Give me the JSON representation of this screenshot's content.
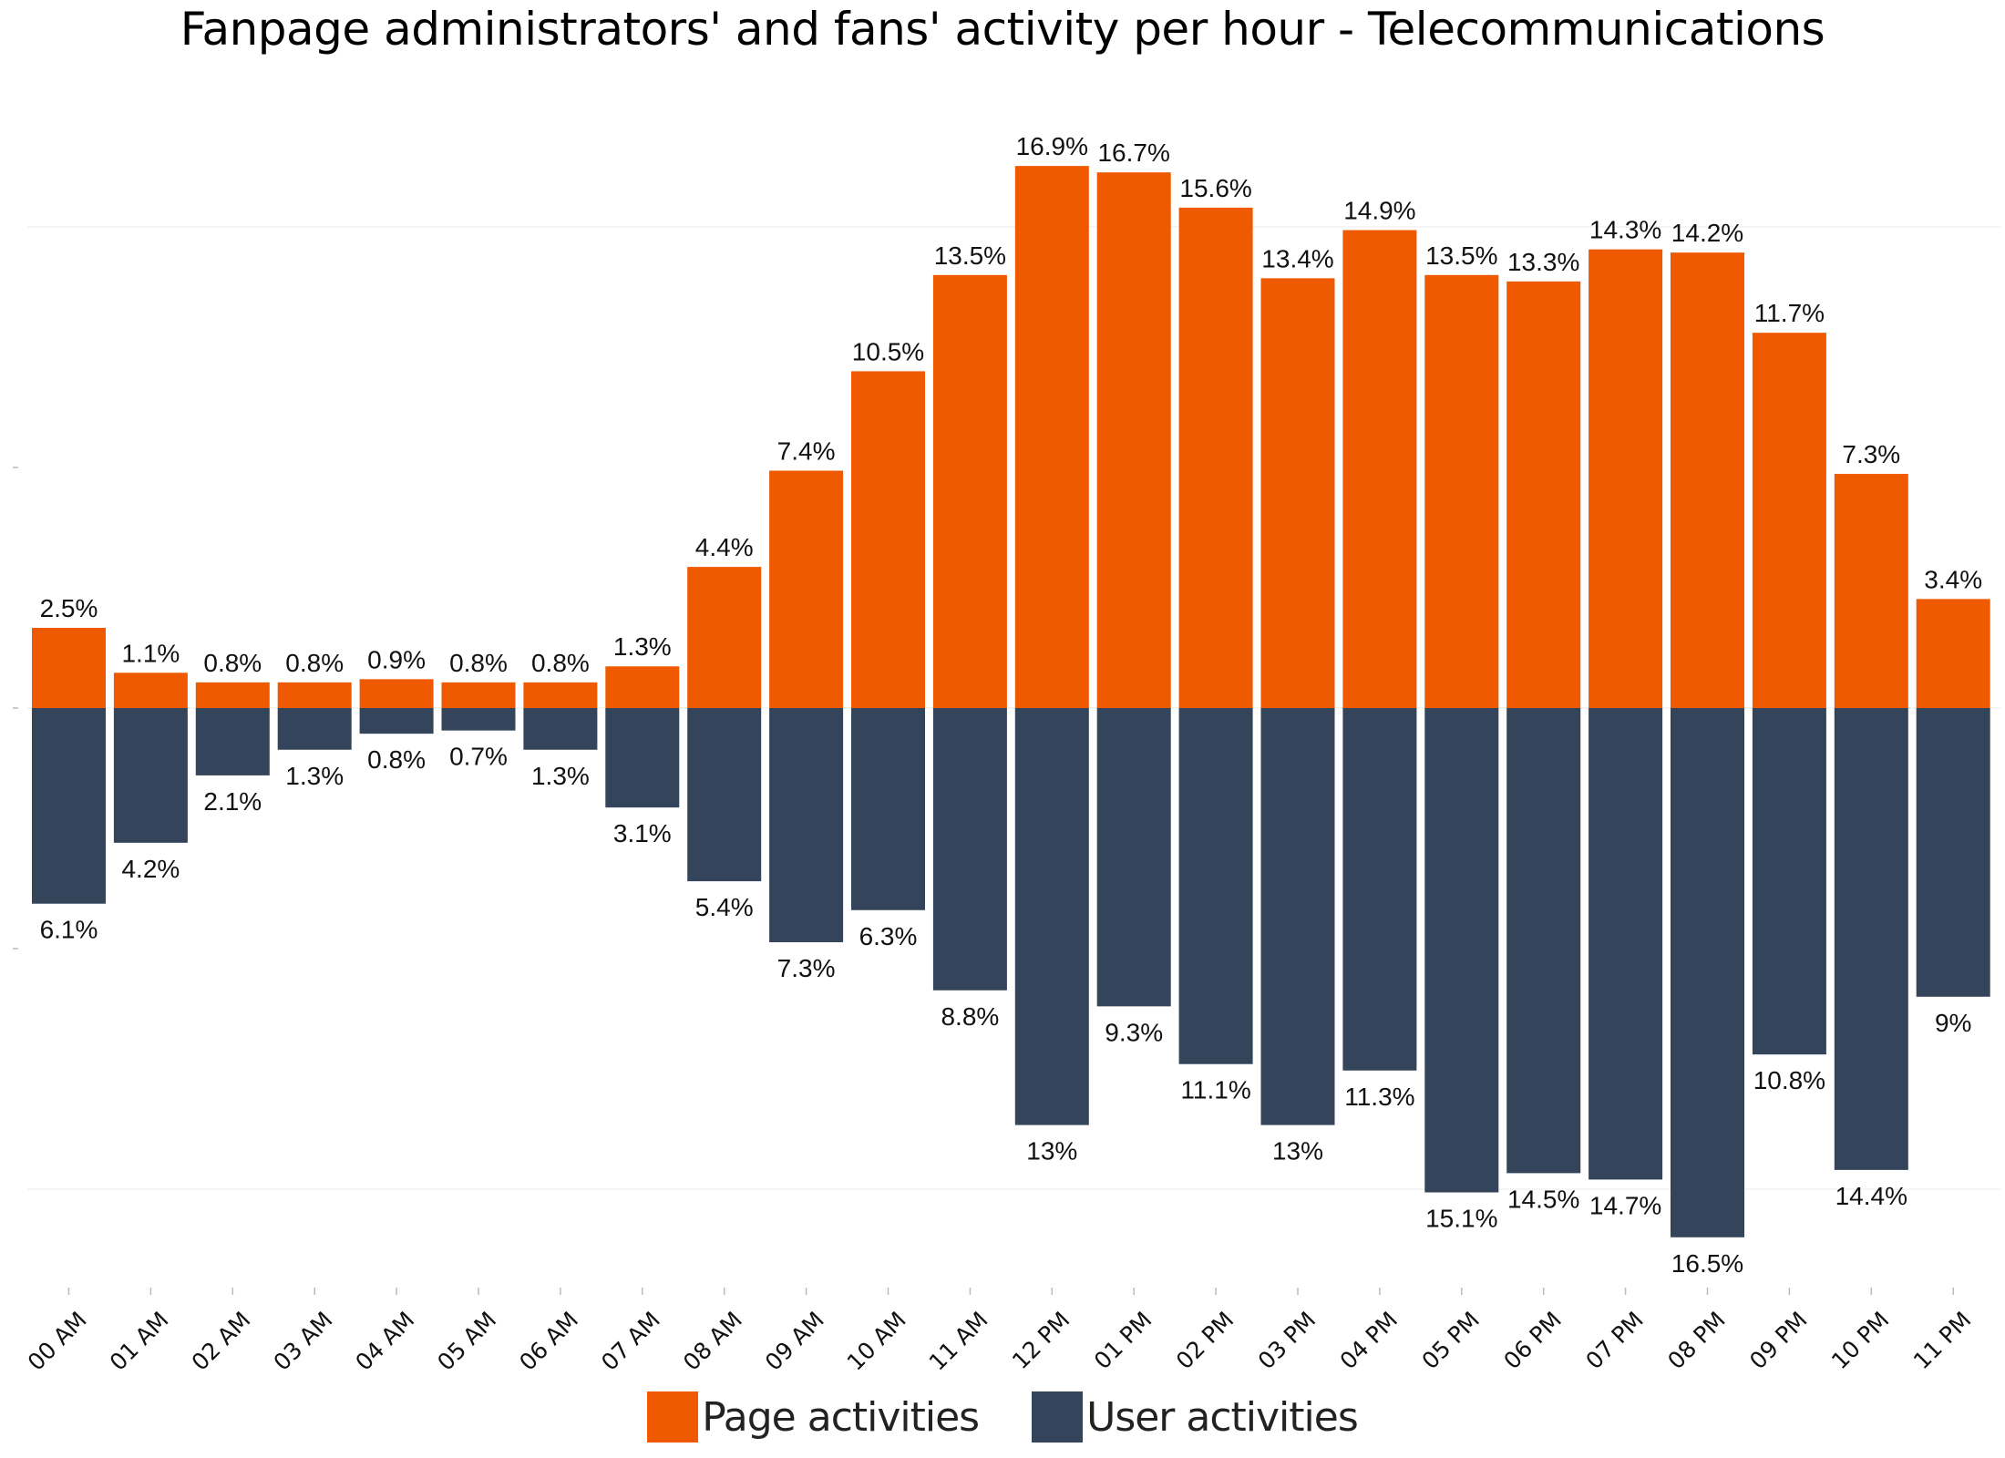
{
  "chart_data": {
    "type": "bar",
    "layout": "diverging",
    "title": "Fanpage administrators' and fans' activity per hour - Telecommunications",
    "xlabel": "",
    "ylabel": "",
    "ylim": [
      -17.5,
      17.5
    ],
    "grid": true,
    "legend_position": "bottom",
    "categories": [
      "00 AM",
      "01 AM",
      "02 AM",
      "03 AM",
      "04 AM",
      "05 AM",
      "06 AM",
      "07 AM",
      "08 AM",
      "09 AM",
      "10 AM",
      "11 AM",
      "12 PM",
      "01 PM",
      "02 PM",
      "03 PM",
      "04 PM",
      "05 PM",
      "06 PM",
      "07 PM",
      "08 PM",
      "09 PM",
      "10 PM",
      "11 PM"
    ],
    "series": [
      {
        "name": "Page activities",
        "color": "#ef5a00",
        "direction": "up",
        "values": [
          2.5,
          1.1,
          0.8,
          0.8,
          0.9,
          0.8,
          0.8,
          1.3,
          4.4,
          7.4,
          10.5,
          13.5,
          16.9,
          16.7,
          15.6,
          13.4,
          14.9,
          13.5,
          13.3,
          14.3,
          14.2,
          11.7,
          7.3,
          3.4
        ],
        "labels": [
          "2.5%",
          "1.1%",
          "0.8%",
          "0.8%",
          "0.9%",
          "0.8%",
          "0.8%",
          "1.3%",
          "4.4%",
          "7.4%",
          "10.5%",
          "13.5%",
          "16.9%",
          "16.7%",
          "15.6%",
          "13.4%",
          "14.9%",
          "13.5%",
          "13.3%",
          "14.3%",
          "14.2%",
          "11.7%",
          "7.3%",
          "3.4%"
        ]
      },
      {
        "name": "User activities",
        "color": "#34445b",
        "direction": "down",
        "values": [
          6.1,
          4.2,
          2.1,
          1.3,
          0.8,
          0.7,
          1.3,
          3.1,
          5.4,
          7.3,
          6.3,
          8.8,
          13,
          9.3,
          11.1,
          13,
          11.3,
          15.1,
          14.5,
          14.7,
          16.5,
          10.8,
          14.4,
          9
        ],
        "labels": [
          "6.1%",
          "4.2%",
          "2.1%",
          "1.3%",
          "0.8%",
          "0.7%",
          "1.3%",
          "3.1%",
          "5.4%",
          "7.3%",
          "6.3%",
          "8.8%",
          "13%",
          "9.3%",
          "11.1%",
          "13%",
          "11.3%",
          "15.1%",
          "14.5%",
          "14.7%",
          "16.5%",
          "10.8%",
          "14.4%",
          "9%"
        ]
      }
    ],
    "gridlines": [
      -15,
      0,
      15
    ],
    "minor_ticks": [
      -7.5,
      7.5
    ]
  },
  "legend": {
    "items": [
      {
        "label": "Page activities",
        "color": "#ef5a00"
      },
      {
        "label": "User activities",
        "color": "#34445b"
      }
    ]
  }
}
